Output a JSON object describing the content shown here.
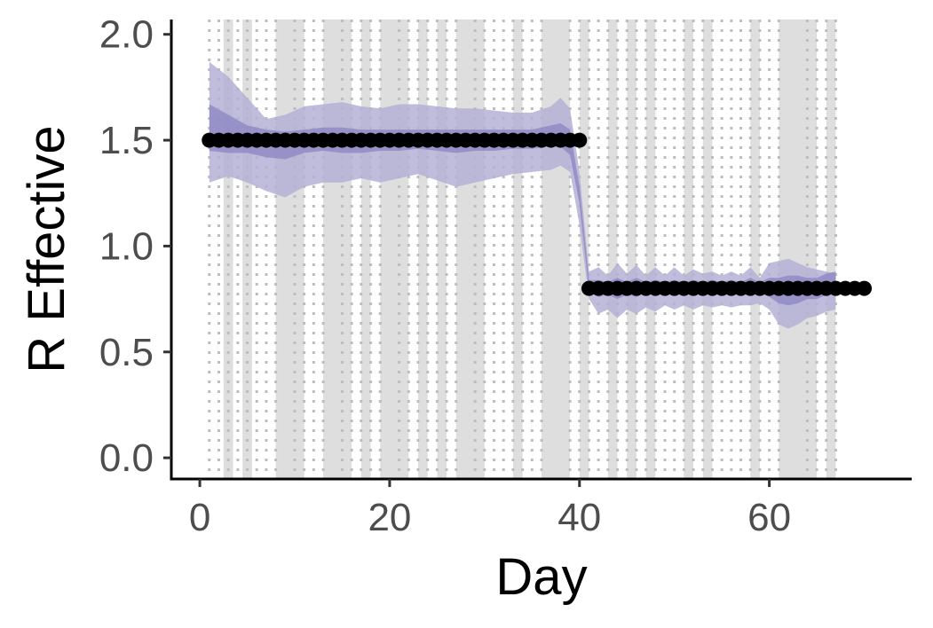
{
  "chart_data": {
    "type": "scatter",
    "xlabel": "Day",
    "ylabel": "R Effective",
    "xlim": [
      -3,
      75
    ],
    "ylim": [
      -0.1,
      2.07
    ],
    "xticks": [
      0,
      20,
      40,
      60
    ],
    "yticks": [
      0.0,
      0.5,
      1.0,
      1.5,
      2.0
    ],
    "ytick_labels": [
      "0.0",
      "0.5",
      "1.0",
      "1.5",
      "2.0"
    ],
    "grid": false,
    "colors": {
      "points": "#000000",
      "band_outer": "#b4b0d6",
      "band_inner": "#8a84c2",
      "shade": "#dedede",
      "dotted_line": "#bdbdbd",
      "axis": "#000000"
    },
    "true_r": {
      "x": [
        1,
        2,
        3,
        4,
        5,
        6,
        7,
        8,
        9,
        10,
        11,
        12,
        13,
        14,
        15,
        16,
        17,
        18,
        19,
        20,
        21,
        22,
        23,
        24,
        25,
        26,
        27,
        28,
        29,
        30,
        31,
        32,
        33,
        34,
        35,
        36,
        37,
        38,
        39,
        40,
        41,
        42,
        43,
        44,
        45,
        46,
        47,
        48,
        49,
        50,
        51,
        52,
        53,
        54,
        55,
        56,
        57,
        58,
        59,
        60,
        61,
        62,
        63,
        64,
        65,
        66,
        67,
        68,
        69,
        70
      ],
      "y": [
        1.5,
        1.5,
        1.5,
        1.5,
        1.5,
        1.5,
        1.5,
        1.5,
        1.5,
        1.5,
        1.5,
        1.5,
        1.5,
        1.5,
        1.5,
        1.5,
        1.5,
        1.5,
        1.5,
        1.5,
        1.5,
        1.5,
        1.5,
        1.5,
        1.5,
        1.5,
        1.5,
        1.5,
        1.5,
        1.5,
        1.5,
        1.5,
        1.5,
        1.5,
        1.5,
        1.5,
        1.5,
        1.5,
        1.5,
        1.5,
        0.8,
        0.8,
        0.8,
        0.8,
        0.8,
        0.8,
        0.8,
        0.8,
        0.8,
        0.8,
        0.8,
        0.8,
        0.8,
        0.8,
        0.8,
        0.8,
        0.8,
        0.8,
        0.8,
        0.8,
        0.8,
        0.8,
        0.8,
        0.8,
        0.8,
        0.8,
        0.8,
        0.8,
        0.8,
        0.8
      ]
    },
    "estimate_band_outer": {
      "x": [
        1,
        3,
        5,
        7,
        9,
        11,
        13,
        15,
        17,
        19,
        21,
        23,
        25,
        27,
        29,
        31,
        33,
        35,
        37,
        38,
        39,
        40,
        41,
        42,
        43,
        44,
        45,
        46,
        47,
        48,
        49,
        50,
        51,
        52,
        53,
        54,
        55,
        56,
        57,
        58,
        59,
        60,
        61,
        62,
        63,
        64,
        65,
        66,
        67
      ],
      "lower": [
        1.3,
        1.33,
        1.3,
        1.26,
        1.23,
        1.28,
        1.3,
        1.3,
        1.32,
        1.3,
        1.32,
        1.34,
        1.31,
        1.28,
        1.3,
        1.32,
        1.34,
        1.35,
        1.36,
        1.38,
        1.35,
        1.1,
        0.75,
        0.68,
        0.7,
        0.66,
        0.7,
        0.68,
        0.71,
        0.69,
        0.72,
        0.7,
        0.72,
        0.7,
        0.72,
        0.71,
        0.72,
        0.71,
        0.72,
        0.72,
        0.73,
        0.7,
        0.63,
        0.61,
        0.63,
        0.66,
        0.67,
        0.69,
        0.7
      ],
      "upper": [
        1.87,
        1.8,
        1.7,
        1.6,
        1.62,
        1.66,
        1.67,
        1.68,
        1.66,
        1.65,
        1.67,
        1.67,
        1.66,
        1.65,
        1.65,
        1.64,
        1.63,
        1.63,
        1.66,
        1.7,
        1.65,
        1.35,
        0.88,
        0.9,
        0.86,
        0.92,
        0.87,
        0.91,
        0.86,
        0.9,
        0.86,
        0.9,
        0.86,
        0.89,
        0.87,
        0.88,
        0.86,
        0.88,
        0.86,
        0.9,
        0.85,
        0.92,
        0.93,
        0.94,
        0.92,
        0.9,
        0.89,
        0.88,
        0.87
      ]
    },
    "estimate_band_inner": {
      "x": [
        1,
        3,
        5,
        7,
        9,
        11,
        13,
        15,
        17,
        19,
        21,
        23,
        25,
        27,
        29,
        31,
        33,
        35,
        37,
        38,
        39,
        40,
        41,
        42,
        43,
        44,
        45,
        46,
        47,
        48,
        49,
        50,
        51,
        52,
        53,
        54,
        55,
        56,
        57,
        58,
        59,
        60,
        61,
        62,
        63,
        64,
        65,
        66,
        67
      ],
      "lower": [
        1.45,
        1.44,
        1.44,
        1.42,
        1.41,
        1.44,
        1.45,
        1.44,
        1.44,
        1.45,
        1.45,
        1.46,
        1.45,
        1.44,
        1.45,
        1.45,
        1.46,
        1.46,
        1.47,
        1.47,
        1.43,
        1.2,
        0.79,
        0.76,
        0.77,
        0.75,
        0.77,
        0.76,
        0.78,
        0.77,
        0.78,
        0.77,
        0.78,
        0.77,
        0.78,
        0.77,
        0.78,
        0.77,
        0.78,
        0.78,
        0.78,
        0.76,
        0.73,
        0.72,
        0.73,
        0.75,
        0.75,
        0.77,
        0.78
      ],
      "upper": [
        1.67,
        1.62,
        1.57,
        1.55,
        1.54,
        1.55,
        1.56,
        1.56,
        1.55,
        1.55,
        1.55,
        1.55,
        1.55,
        1.55,
        1.55,
        1.55,
        1.55,
        1.55,
        1.57,
        1.58,
        1.55,
        1.28,
        0.84,
        0.84,
        0.83,
        0.85,
        0.83,
        0.85,
        0.83,
        0.84,
        0.83,
        0.84,
        0.83,
        0.84,
        0.83,
        0.84,
        0.83,
        0.84,
        0.83,
        0.85,
        0.83,
        0.85,
        0.85,
        0.86,
        0.86,
        0.85,
        0.85,
        0.87,
        0.88
      ]
    },
    "shaded_spans": [
      [
        2.5,
        3.5
      ],
      [
        4.5,
        5.5
      ],
      [
        8,
        11
      ],
      [
        13,
        16
      ],
      [
        17,
        18
      ],
      [
        19,
        22
      ],
      [
        23,
        24
      ],
      [
        25,
        26
      ],
      [
        27,
        30
      ],
      [
        33,
        34
      ],
      [
        36,
        39
      ],
      [
        40,
        41
      ],
      [
        43,
        44
      ],
      [
        45,
        46
      ],
      [
        47,
        48
      ],
      [
        51,
        52
      ],
      [
        53,
        54
      ],
      [
        58,
        59
      ],
      [
        61,
        65
      ],
      [
        66,
        67
      ]
    ],
    "dotted_lines": [
      1,
      2,
      3,
      4,
      5,
      6,
      7,
      8,
      10,
      11,
      12,
      13,
      15,
      16,
      17,
      18,
      19,
      21,
      22,
      23,
      24,
      25,
      26,
      27,
      29,
      30,
      31,
      32,
      33,
      34,
      35,
      36,
      39,
      40,
      41,
      42,
      43,
      44,
      45,
      46,
      47,
      48,
      49,
      50,
      51,
      52,
      53,
      54,
      55,
      56,
      57,
      58,
      59,
      60,
      61,
      64,
      65,
      66,
      67
    ]
  }
}
